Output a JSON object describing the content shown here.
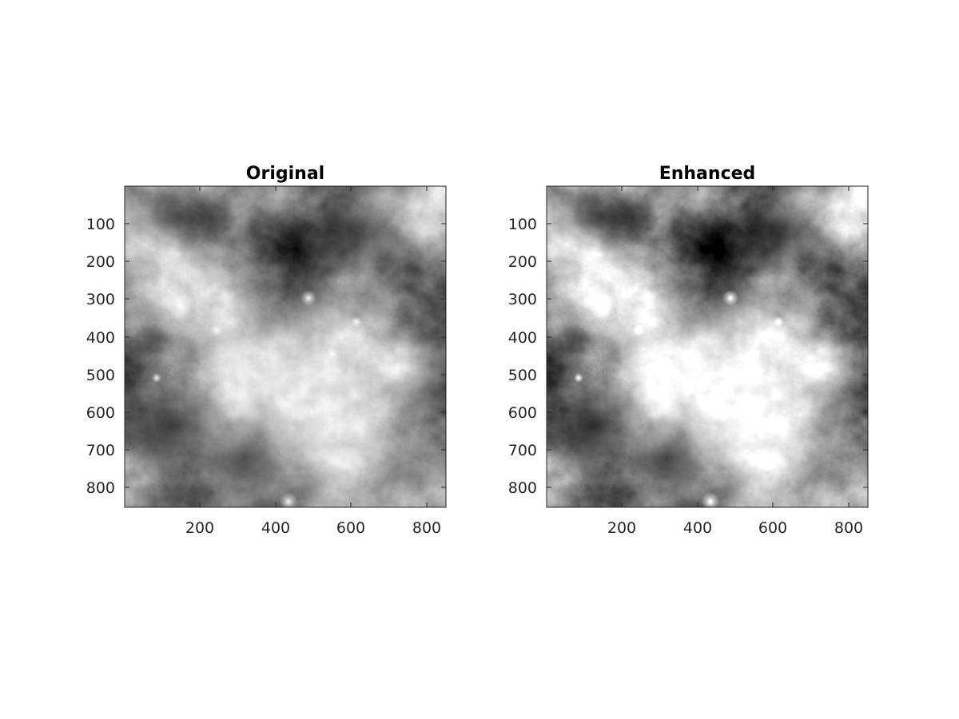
{
  "figure": {
    "panels": [
      {
        "id": "original",
        "title": "Original",
        "image_subject": "grayscale moon surface",
        "x_ticks": [
          "200",
          "400",
          "600",
          "800"
        ],
        "y_ticks": [
          "100",
          "200",
          "300",
          "400",
          "500",
          "600",
          "700",
          "800"
        ],
        "contrast": 1.0,
        "brightness": 1.0
      },
      {
        "id": "enhanced",
        "title": "Enhanced",
        "image_subject": "grayscale moon surface",
        "x_ticks": [
          "200",
          "400",
          "600",
          "800"
        ],
        "y_ticks": [
          "100",
          "200",
          "300",
          "400",
          "500",
          "600",
          "700",
          "800"
        ],
        "contrast": 1.2,
        "brightness": 0.95
      }
    ],
    "colormap": "gray",
    "axis_color": "#262626"
  }
}
